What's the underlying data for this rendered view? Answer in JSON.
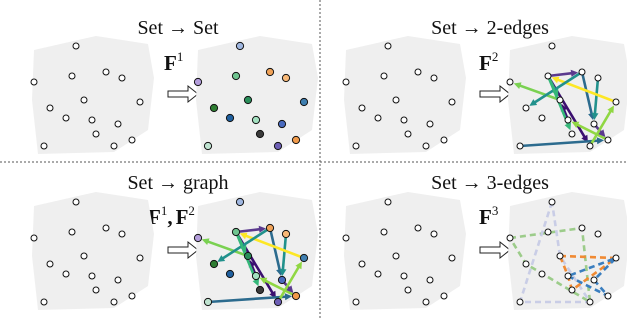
{
  "panels": [
    {
      "id": "set-to-set",
      "title_from": "Set",
      "title_to": "Set",
      "op_symbol": "F",
      "op_sup": "1",
      "op_extra_symbol": "",
      "op_extra_sup": "",
      "op_sep": ""
    },
    {
      "id": "set-to-2-edges",
      "title_from": "Set",
      "title_to": "2-edges",
      "op_symbol": "F",
      "op_sup": "2",
      "op_extra_symbol": "",
      "op_extra_sup": "",
      "op_sep": ""
    },
    {
      "id": "set-to-graph",
      "title_from": "Set",
      "title_to": "graph",
      "op_symbol": "F",
      "op_sup": "1",
      "op_extra_symbol": "F",
      "op_extra_sup": "2",
      "op_sep": ","
    },
    {
      "id": "set-to-3-edges",
      "title_from": "Set",
      "title_to": "3-edges",
      "op_symbol": "F",
      "op_sup": "3",
      "op_extra_symbol": "",
      "op_extra_sup": "",
      "op_sep": ""
    }
  ],
  "title_arrow": "→",
  "colors": {
    "blob": "#efefef",
    "divider": "#555555",
    "node_fill": "#ffffff",
    "node_stroke": "#111111",
    "edge_palette": [
      "#3b0f70",
      "#5b3a8e",
      "#2c6b8e",
      "#21918c",
      "#35b779",
      "#90d743",
      "#7ad151",
      "#fde725"
    ],
    "set_node_palette": [
      "#9fb6e0",
      "#b39ddb",
      "#6fc48f",
      "#f0a258",
      "#f7b877",
      "#2a8e5a",
      "#3f7fb0",
      "#a3e0c0",
      "#4a6bbf",
      "#3a3a3a",
      "#bfe3d0",
      "#6d5fb5",
      "#f09a4b",
      "#2e7d32",
      "#1f5f9e"
    ],
    "hyperedges": [
      "#9ccc8a",
      "#c9cde6",
      "#f08a33",
      "#3a7ebf"
    ]
  }
}
